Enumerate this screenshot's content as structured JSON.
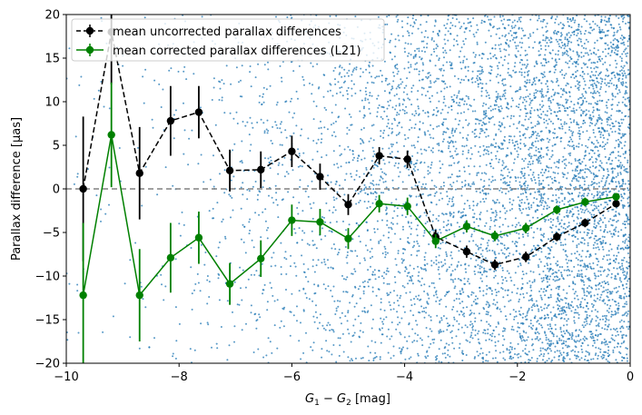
{
  "chart_data": {
    "type": "scatter",
    "xlabel_main": "G",
    "xlabel_sub1": "1",
    "xlabel_minus": " − ",
    "xlabel_sub2": "2",
    "xlabel_unit": " [mag]",
    "ylabel": "Parallax difference [μas]",
    "xlim": [
      -10,
      0
    ],
    "ylim": [
      -20,
      20
    ],
    "xticks": [
      -10,
      -8,
      -6,
      -4,
      -2,
      0
    ],
    "yticks": [
      -20,
      -15,
      -10,
      -5,
      0,
      5,
      10,
      15,
      20
    ],
    "xtick_labels": [
      "−10",
      "−8",
      "−6",
      "−4",
      "−2",
      "0"
    ],
    "ytick_labels": [
      "−20",
      "−15",
      "−10",
      "−5",
      "0",
      "5",
      "10",
      "15",
      "20"
    ],
    "reference_line": {
      "y": 0,
      "color": "#808080",
      "style": "dashed"
    },
    "scatter_background": {
      "color": "#1f77b4",
      "description_density": "sparse at G1-G2 < -5, dense toward 0",
      "x_range": [
        -10,
        0
      ],
      "y_range": [
        -20,
        20
      ]
    },
    "series": [
      {
        "name": "mean uncorrected parallax differences",
        "color": "#000000",
        "linestyle": "dashed",
        "x": [
          -9.7,
          -9.2,
          -8.7,
          -8.15,
          -7.65,
          -7.1,
          -6.55,
          -6.0,
          -5.5,
          -5.0,
          -4.45,
          -3.95,
          -3.45,
          -2.9,
          -2.4,
          -1.85,
          -1.3,
          -0.8,
          -0.25
        ],
        "y": [
          0.0,
          18.0,
          1.8,
          7.8,
          8.8,
          2.1,
          2.2,
          4.3,
          1.4,
          -1.8,
          3.8,
          3.4,
          -5.5,
          -7.2,
          -8.7,
          -7.8,
          -5.5,
          -3.9,
          -1.7
        ],
        "err": [
          8.3,
          6.0,
          5.3,
          4.0,
          3.0,
          2.4,
          2.1,
          1.8,
          1.5,
          1.2,
          1.0,
          1.0,
          0.8,
          0.7,
          0.6,
          0.6,
          0.5,
          0.5,
          0.4
        ]
      },
      {
        "name": "mean corrected parallax differences (L21)",
        "color": "#008000",
        "linestyle": "solid",
        "x": [
          -9.7,
          -9.2,
          -8.7,
          -8.15,
          -7.65,
          -7.1,
          -6.55,
          -6.0,
          -5.5,
          -5.0,
          -4.45,
          -3.95,
          -3.45,
          -2.9,
          -2.4,
          -1.85,
          -1.3,
          -0.8,
          -0.25
        ],
        "y": [
          -12.2,
          6.2,
          -12.2,
          -7.9,
          -5.6,
          -10.9,
          -8.0,
          -3.6,
          -3.8,
          -5.7,
          -1.7,
          -2.0,
          -6.0,
          -4.3,
          -5.4,
          -4.5,
          -2.4,
          -1.5,
          -0.9
        ],
        "err": [
          8.3,
          6.0,
          5.3,
          4.0,
          3.0,
          2.4,
          2.1,
          1.8,
          1.5,
          1.2,
          1.0,
          1.0,
          0.8,
          0.7,
          0.6,
          0.6,
          0.5,
          0.5,
          0.4
        ]
      }
    ],
    "legend": {
      "position": "top-left",
      "entries": [
        "mean uncorrected parallax differences",
        "mean corrected parallax differences (L21)"
      ]
    }
  }
}
